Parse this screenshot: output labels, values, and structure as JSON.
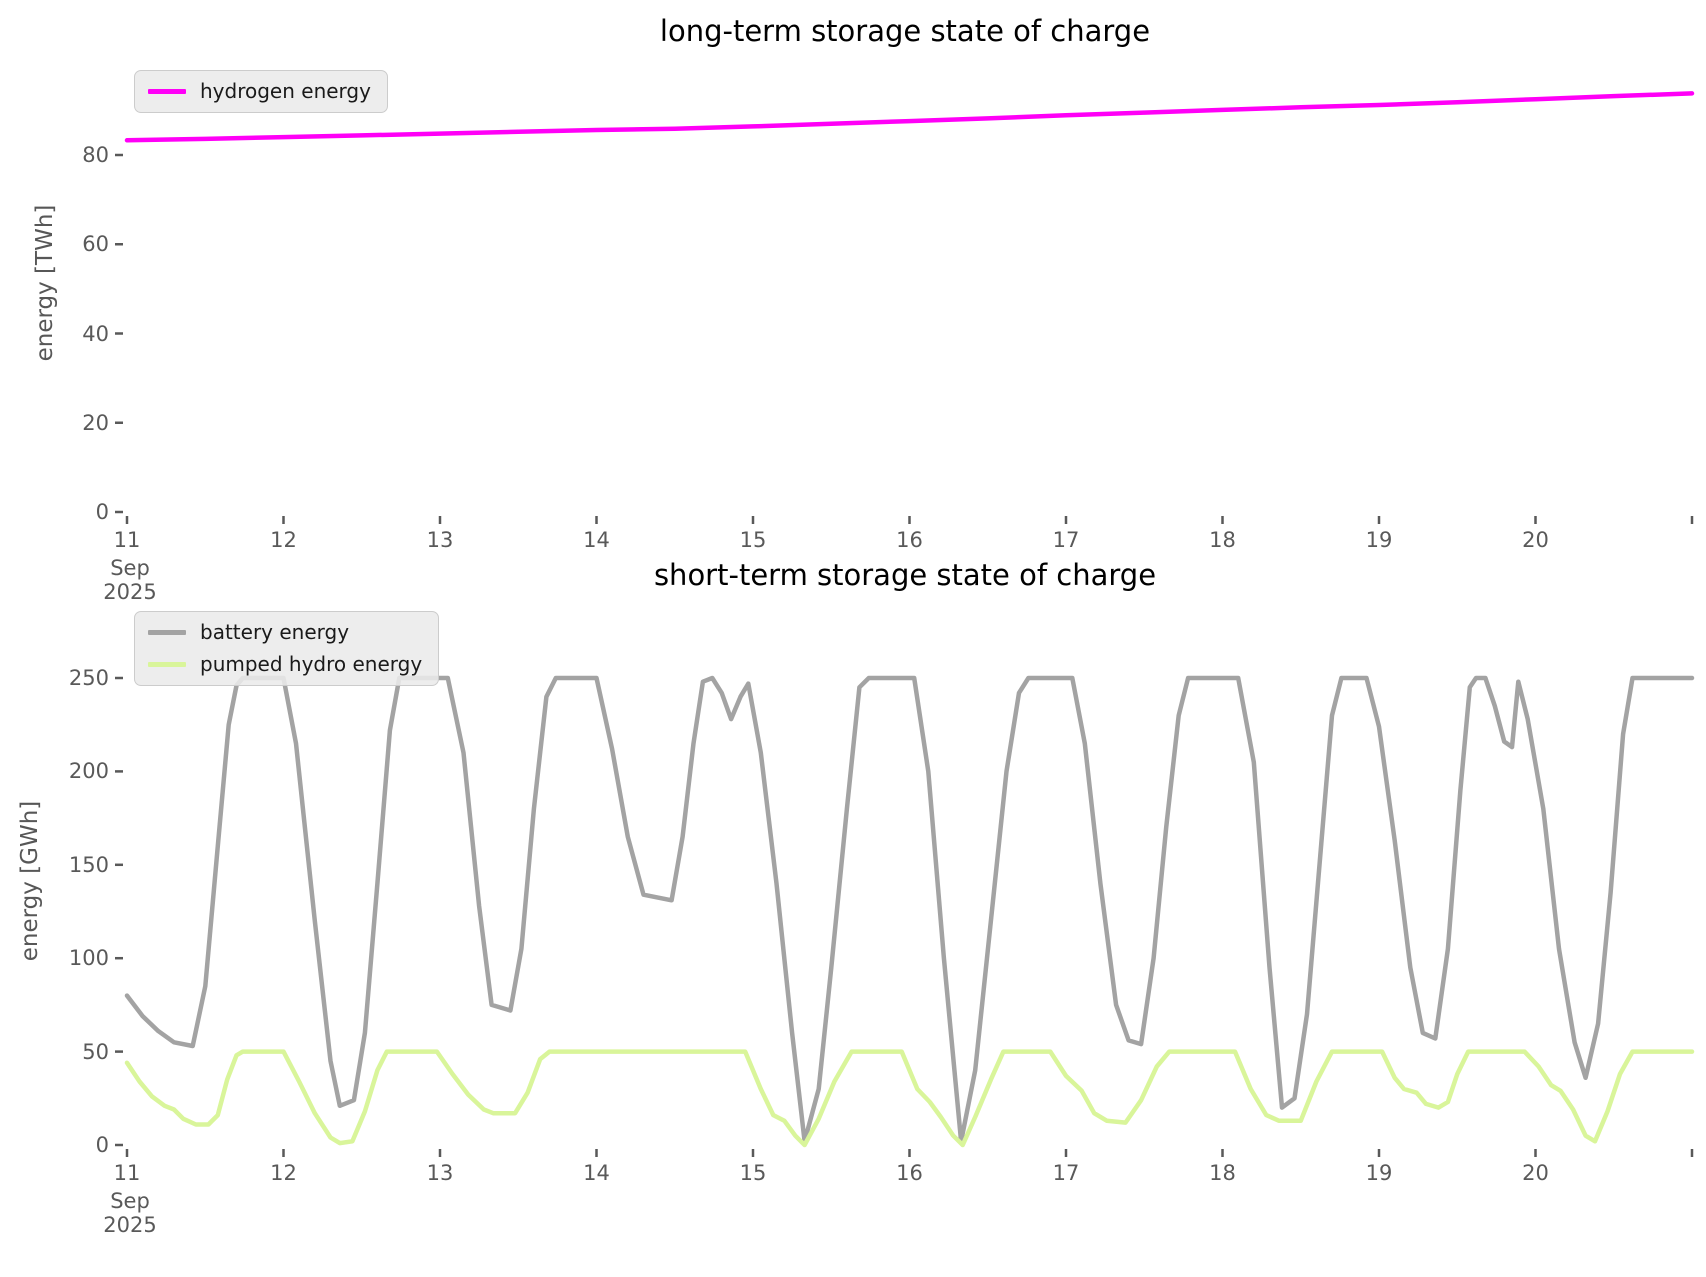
{
  "chart_data": [
    {
      "type": "line",
      "title": "long-term storage state of charge",
      "ylabel": "energy [TWh]",
      "x_range": [
        11,
        21
      ],
      "y_ticks": [
        0,
        20,
        40,
        60,
        80
      ],
      "x_ticks": [
        {
          "v": 11,
          "label": "11",
          "sub": "Sep\n2025"
        },
        {
          "v": 12,
          "label": "12"
        },
        {
          "v": 13,
          "label": "13"
        },
        {
          "v": 14,
          "label": "14"
        },
        {
          "v": 15,
          "label": "15"
        },
        {
          "v": 16,
          "label": "16"
        },
        {
          "v": 17,
          "label": "17"
        },
        {
          "v": 18,
          "label": "18"
        },
        {
          "v": 19,
          "label": "19"
        },
        {
          "v": 20,
          "label": "20"
        },
        {
          "v": 21,
          "label": ""
        }
      ],
      "x_axis_note": "days of September 2025",
      "legend_position": "upper-left",
      "grid": false,
      "series": [
        {
          "name": "hydrogen energy",
          "color": "#ff00f7",
          "points": [
            [
              11.0,
              83.3
            ],
            [
              11.5,
              83.6
            ],
            [
              12.0,
              84.0
            ],
            [
              12.5,
              84.4
            ],
            [
              13.0,
              84.8
            ],
            [
              13.5,
              85.2
            ],
            [
              14.0,
              85.6
            ],
            [
              14.5,
              85.9
            ],
            [
              15.0,
              86.4
            ],
            [
              15.5,
              87.0
            ],
            [
              16.0,
              87.6
            ],
            [
              16.5,
              88.2
            ],
            [
              17.0,
              88.9
            ],
            [
              17.5,
              89.5
            ],
            [
              18.0,
              90.1
            ],
            [
              18.5,
              90.7
            ],
            [
              19.0,
              91.2
            ],
            [
              19.5,
              91.8
            ],
            [
              20.0,
              92.5
            ],
            [
              20.5,
              93.2
            ],
            [
              21.0,
              93.8
            ]
          ]
        }
      ]
    },
    {
      "type": "line",
      "title": "short-term storage state of charge",
      "ylabel": "energy [GWh]",
      "x_range": [
        11,
        21
      ],
      "y_ticks": [
        0,
        50,
        100,
        150,
        200,
        250
      ],
      "x_ticks": [
        {
          "v": 11,
          "label": "11",
          "sub": "Sep\n2025"
        },
        {
          "v": 12,
          "label": "12"
        },
        {
          "v": 13,
          "label": "13"
        },
        {
          "v": 14,
          "label": "14"
        },
        {
          "v": 15,
          "label": "15"
        },
        {
          "v": 16,
          "label": "16"
        },
        {
          "v": 17,
          "label": "17"
        },
        {
          "v": 18,
          "label": "18"
        },
        {
          "v": 19,
          "label": "19"
        },
        {
          "v": 20,
          "label": "20"
        },
        {
          "v": 21,
          "label": ""
        }
      ],
      "x_axis_note": "days of September 2025",
      "legend_position": "upper-left",
      "grid": false,
      "series": [
        {
          "name": "battery energy",
          "color": "#a3a3a3",
          "points": [
            [
              11.0,
              80
            ],
            [
              11.1,
              69
            ],
            [
              11.2,
              61
            ],
            [
              11.3,
              55
            ],
            [
              11.42,
              53
            ],
            [
              11.5,
              85
            ],
            [
              11.58,
              160
            ],
            [
              11.65,
              225
            ],
            [
              11.7,
              246
            ],
            [
              11.74,
              250
            ],
            [
              12.0,
              250
            ],
            [
              12.08,
              215
            ],
            [
              12.2,
              120
            ],
            [
              12.3,
              45
            ],
            [
              12.36,
              21
            ],
            [
              12.45,
              24
            ],
            [
              12.52,
              60
            ],
            [
              12.6,
              140
            ],
            [
              12.68,
              222
            ],
            [
              12.74,
              250
            ],
            [
              13.05,
              250
            ],
            [
              13.15,
              210
            ],
            [
              13.25,
              128
            ],
            [
              13.33,
              75
            ],
            [
              13.45,
              72
            ],
            [
              13.52,
              105
            ],
            [
              13.6,
              180
            ],
            [
              13.68,
              240
            ],
            [
              13.74,
              250
            ],
            [
              14.0,
              250
            ],
            [
              14.1,
              212
            ],
            [
              14.2,
              165
            ],
            [
              14.3,
              134
            ],
            [
              14.48,
              131
            ],
            [
              14.55,
              165
            ],
            [
              14.62,
              215
            ],
            [
              14.68,
              248
            ],
            [
              14.74,
              250
            ],
            [
              14.8,
              242
            ],
            [
              14.86,
              228
            ],
            [
              14.92,
              240
            ],
            [
              14.97,
              247
            ],
            [
              15.05,
              210
            ],
            [
              15.15,
              140
            ],
            [
              15.25,
              60
            ],
            [
              15.33,
              2
            ],
            [
              15.42,
              30
            ],
            [
              15.5,
              95
            ],
            [
              15.6,
              180
            ],
            [
              15.68,
              245
            ],
            [
              15.74,
              250
            ],
            [
              16.03,
              250
            ],
            [
              16.12,
              200
            ],
            [
              16.22,
              100
            ],
            [
              16.33,
              2
            ],
            [
              16.42,
              40
            ],
            [
              16.52,
              120
            ],
            [
              16.62,
              200
            ],
            [
              16.7,
              242
            ],
            [
              16.76,
              250
            ],
            [
              17.04,
              250
            ],
            [
              17.12,
              215
            ],
            [
              17.22,
              140
            ],
            [
              17.32,
              75
            ],
            [
              17.4,
              56
            ],
            [
              17.48,
              54
            ],
            [
              17.56,
              100
            ],
            [
              17.64,
              170
            ],
            [
              17.72,
              230
            ],
            [
              17.78,
              250
            ],
            [
              18.1,
              250
            ],
            [
              18.2,
              205
            ],
            [
              18.3,
              95
            ],
            [
              18.38,
              20
            ],
            [
              18.46,
              25
            ],
            [
              18.54,
              70
            ],
            [
              18.62,
              150
            ],
            [
              18.7,
              230
            ],
            [
              18.76,
              250
            ],
            [
              18.92,
              250
            ],
            [
              19.0,
              224
            ],
            [
              19.1,
              163
            ],
            [
              19.2,
              95
            ],
            [
              19.28,
              60
            ],
            [
              19.36,
              57
            ],
            [
              19.44,
              105
            ],
            [
              19.52,
              190
            ],
            [
              19.58,
              245
            ],
            [
              19.62,
              250
            ],
            [
              19.68,
              250
            ],
            [
              19.74,
              235
            ],
            [
              19.8,
              216
            ],
            [
              19.85,
              213
            ],
            [
              19.89,
              248
            ],
            [
              19.95,
              228
            ],
            [
              20.05,
              180
            ],
            [
              20.15,
              105
            ],
            [
              20.25,
              55
            ],
            [
              20.32,
              36
            ],
            [
              20.4,
              65
            ],
            [
              20.48,
              135
            ],
            [
              20.56,
              220
            ],
            [
              20.62,
              250
            ],
            [
              21.0,
              250
            ]
          ]
        },
        {
          "name": "pumped hydro energy",
          "color": "#d9f59a",
          "points": [
            [
              11.0,
              44
            ],
            [
              11.08,
              34
            ],
            [
              11.16,
              26
            ],
            [
              11.24,
              21
            ],
            [
              11.3,
              19
            ],
            [
              11.36,
              14
            ],
            [
              11.44,
              11
            ],
            [
              11.52,
              11
            ],
            [
              11.58,
              16
            ],
            [
              11.64,
              35
            ],
            [
              11.7,
              48
            ],
            [
              11.74,
              50
            ],
            [
              12.0,
              50
            ],
            [
              12.1,
              34
            ],
            [
              12.2,
              17
            ],
            [
              12.3,
              4
            ],
            [
              12.36,
              1
            ],
            [
              12.44,
              2
            ],
            [
              12.52,
              18
            ],
            [
              12.6,
              40
            ],
            [
              12.66,
              50
            ],
            [
              12.98,
              50
            ],
            [
              13.08,
              38
            ],
            [
              13.18,
              27
            ],
            [
              13.28,
              19
            ],
            [
              13.34,
              17
            ],
            [
              13.48,
              17
            ],
            [
              13.56,
              28
            ],
            [
              13.64,
              46
            ],
            [
              13.7,
              50
            ],
            [
              14.95,
              50
            ],
            [
              15.05,
              30
            ],
            [
              15.13,
              16
            ],
            [
              15.2,
              13
            ],
            [
              15.27,
              5
            ],
            [
              15.33,
              0
            ],
            [
              15.42,
              14
            ],
            [
              15.52,
              34
            ],
            [
              15.63,
              50
            ],
            [
              15.95,
              50
            ],
            [
              16.05,
              30
            ],
            [
              16.13,
              23
            ],
            [
              16.2,
              15
            ],
            [
              16.28,
              5
            ],
            [
              16.34,
              0
            ],
            [
              16.42,
              15
            ],
            [
              16.52,
              35
            ],
            [
              16.6,
              50
            ],
            [
              16.9,
              50
            ],
            [
              17.0,
              37
            ],
            [
              17.1,
              29
            ],
            [
              17.18,
              17
            ],
            [
              17.26,
              13
            ],
            [
              17.38,
              12
            ],
            [
              17.48,
              24
            ],
            [
              17.58,
              42
            ],
            [
              17.66,
              50
            ],
            [
              18.08,
              50
            ],
            [
              18.18,
              30
            ],
            [
              18.28,
              16
            ],
            [
              18.36,
              13
            ],
            [
              18.5,
              13
            ],
            [
              18.6,
              34
            ],
            [
              18.7,
              50
            ],
            [
              19.02,
              50
            ],
            [
              19.1,
              36
            ],
            [
              19.16,
              30
            ],
            [
              19.24,
              28
            ],
            [
              19.3,
              22
            ],
            [
              19.38,
              20
            ],
            [
              19.44,
              23
            ],
            [
              19.5,
              38
            ],
            [
              19.57,
              50
            ],
            [
              19.93,
              50
            ],
            [
              20.02,
              42
            ],
            [
              20.1,
              32
            ],
            [
              20.16,
              29
            ],
            [
              20.24,
              19
            ],
            [
              20.32,
              5
            ],
            [
              20.38,
              2
            ],
            [
              20.46,
              18
            ],
            [
              20.54,
              38
            ],
            [
              20.62,
              50
            ],
            [
              21.0,
              50
            ]
          ]
        }
      ]
    }
  ]
}
